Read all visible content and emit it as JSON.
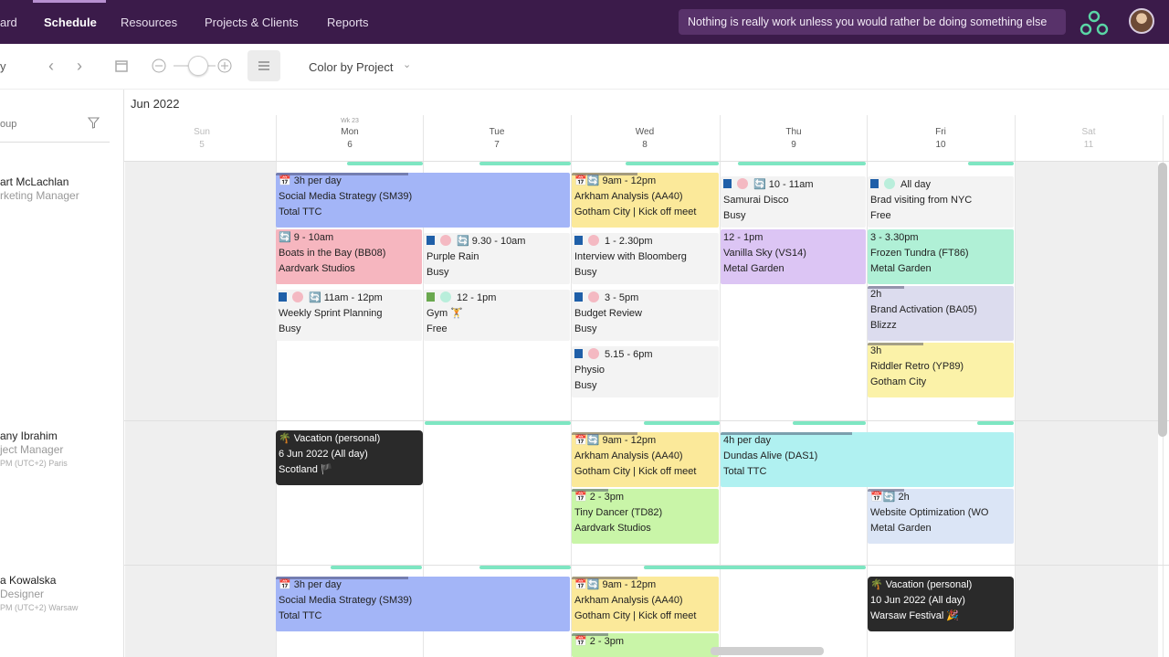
{
  "nav": {
    "items": [
      "ard",
      "Schedule",
      "Resources",
      "Projects & Clients",
      "Reports"
    ],
    "quote": "Nothing is really work unless you would rather be doing something else"
  },
  "toolbar": {
    "left": "y",
    "color_by": "Color by Project",
    "group": "oup"
  },
  "calendar": {
    "month": "Jun 2022",
    "days": [
      {
        "name": "Sun",
        "num": "5"
      },
      {
        "name": "Mon",
        "num": "6",
        "week": "Wk 23"
      },
      {
        "name": "Tue",
        "num": "7"
      },
      {
        "name": "Wed",
        "num": "8"
      },
      {
        "name": "Thu",
        "num": "9"
      },
      {
        "name": "Fri",
        "num": "10"
      },
      {
        "name": "Sat",
        "num": "11"
      }
    ]
  },
  "people": [
    {
      "name": "art McLachlan",
      "role": "rketing Manager"
    },
    {
      "name": "any Ibrahim",
      "role": "ject Manager",
      "tz": "PM (UTC+2) Paris"
    },
    {
      "name": "a Kowalska",
      "role": "Designer",
      "tz": "PM (UTC+2) Warsaw"
    }
  ],
  "events": [
    {
      "l": [
        "📅 3h per day",
        "Social Media Strategy (SM39)",
        "Total TTC"
      ]
    },
    {
      "l": [
        "📅🔄 9am - 12pm",
        "Arkham Analysis (AA40)",
        "Gotham City | Kick off meet"
      ]
    },
    {
      "l": [
        "10 - 11am",
        "Samurai Disco",
        "Busy"
      ]
    },
    {
      "l": [
        "All day",
        "Brad visiting from NYC",
        "Free"
      ]
    },
    {
      "l": [
        "🔄 9 - 10am",
        "Boats in the Bay (BB08)",
        "Aardvark Studios"
      ]
    },
    {
      "l": [
        "9.30 - 10am",
        "Purple Rain",
        "Busy"
      ]
    },
    {
      "l": [
        "1 - 2.30pm",
        "Interview with Bloomberg",
        "Busy"
      ]
    },
    {
      "l": [
        "12 - 1pm",
        "Vanilla Sky (VS14)",
        "Metal Garden"
      ]
    },
    {
      "l": [
        "3 - 3.30pm",
        "Frozen Tundra (FT86)",
        "Metal Garden"
      ]
    },
    {
      "l": [
        "11am - 12pm",
        "Weekly Sprint Planning",
        "Busy"
      ]
    },
    {
      "l": [
        "12 - 1pm",
        "Gym 🏋",
        "Free"
      ]
    },
    {
      "l": [
        "3 - 5pm",
        "Budget Review",
        "Busy"
      ]
    },
    {
      "l": [
        "2h",
        "Brand Activation (BA05)",
        "Blizzz"
      ]
    },
    {
      "l": [
        "5.15 - 6pm",
        "Physio",
        "Busy"
      ]
    },
    {
      "l": [
        "3h",
        "Riddler Retro (YP89)",
        "Gotham City"
      ]
    },
    {
      "l": [
        "🌴 Vacation (personal)",
        "6 Jun 2022 (All day)",
        "Scotland 🏴"
      ]
    },
    {
      "l": [
        "📅🔄 9am - 12pm",
        "Arkham Analysis (AA40)",
        "Gotham City | Kick off meet"
      ]
    },
    {
      "l": [
        "4h per day",
        "Dundas Alive (DAS1)",
        "Total TTC"
      ]
    },
    {
      "l": [
        "📅🔄 2h",
        "Website Optimization (WO",
        "Metal Garden"
      ]
    },
    {
      "l": [
        "📅 2 - 3pm",
        "Tiny Dancer (TD82)",
        "Aardvark Studios"
      ]
    },
    {
      "l": [
        "📅 3h per day",
        "Social Media Strategy (SM39)",
        "Total TTC"
      ]
    },
    {
      "l": [
        "📅🔄 9am - 12pm",
        "Arkham Analysis (AA40)",
        "Gotham City | Kick off meet"
      ]
    },
    {
      "l": [
        "🌴 Vacation (personal)",
        "10 Jun 2022 (All day)",
        "Warsaw Festival 🎉"
      ]
    },
    {
      "l": [
        "📅 2 - 3pm"
      ]
    }
  ],
  "colors": {
    "topbar": "#3b1b4a",
    "blue": "#a3b5f7",
    "yellow": "#fbe99a",
    "pink": "#f6b6bf",
    "green": "#b0f0d6",
    "purple": "#dcc5f4",
    "cyan": "#b0f1f1",
    "lime": "#c9f5a8",
    "lightblue": "#dbe5f6",
    "gray": "#f3f3f3",
    "dark": "#2a2a2a"
  }
}
